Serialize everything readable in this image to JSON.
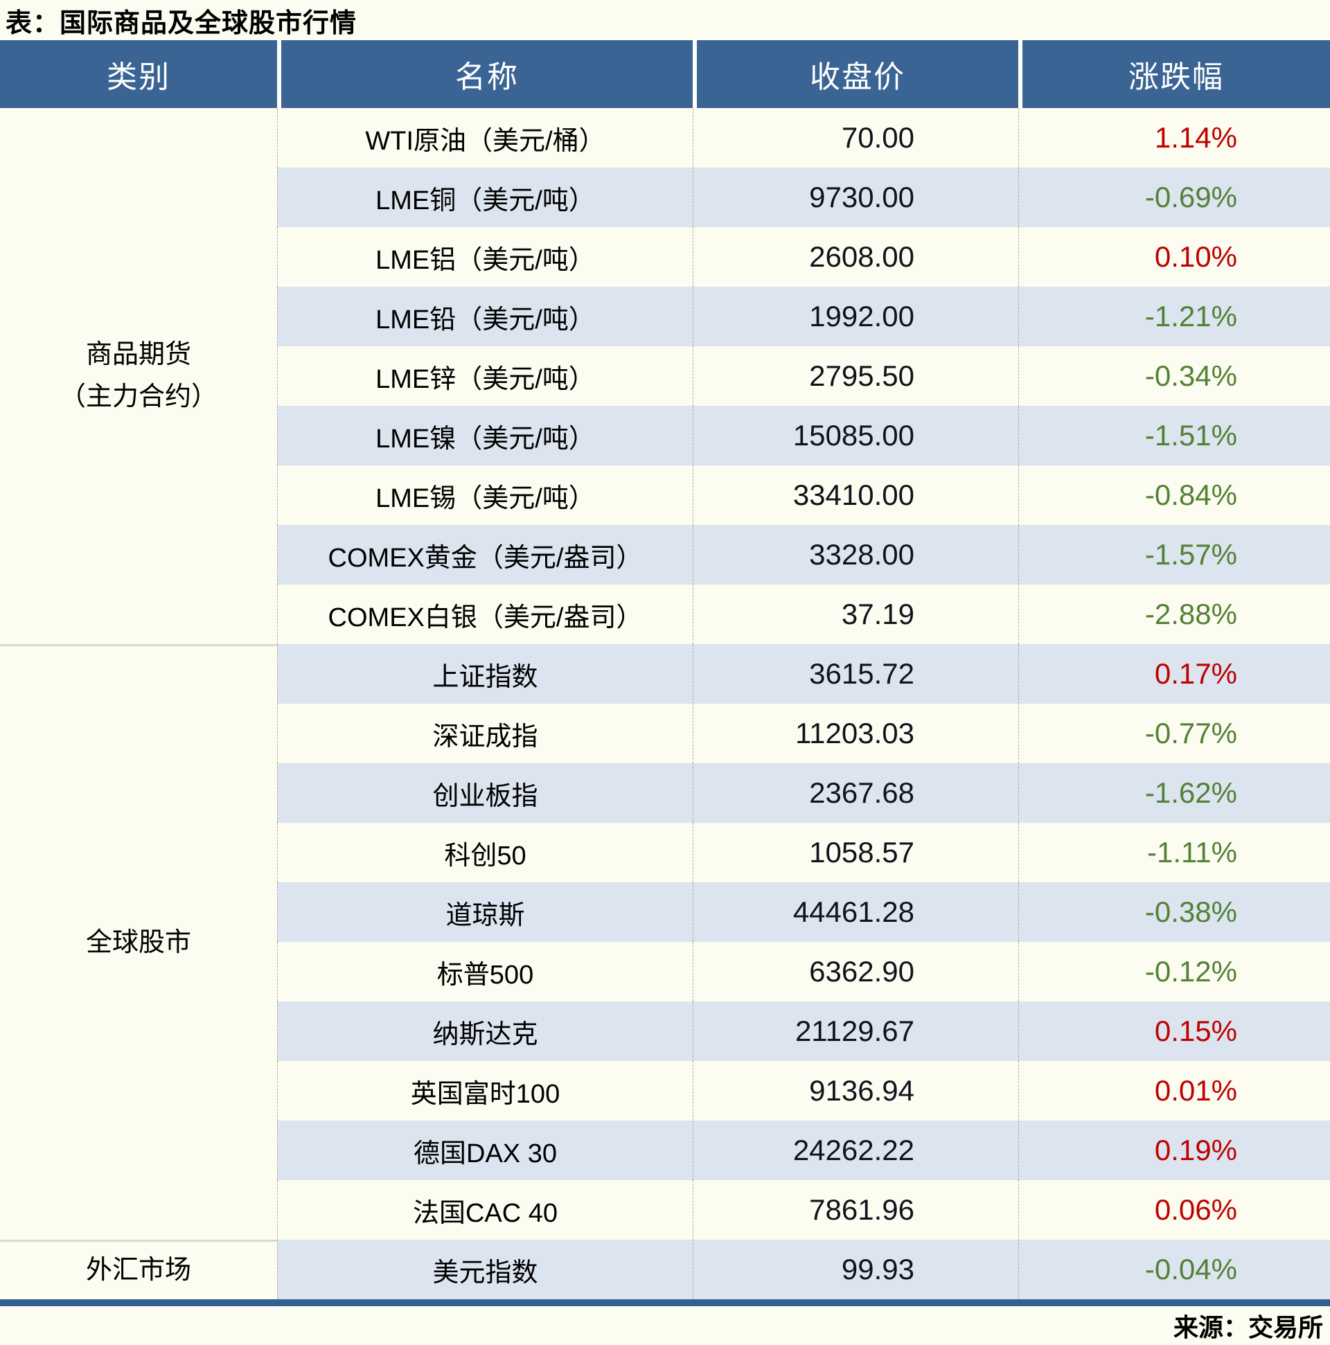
{
  "title": "表：国际商品及全球股市行情",
  "footer": {
    "source": "来源：交易所"
  },
  "colors": {
    "page_bg": "#FCFCF0",
    "header_bg": "#3A6494",
    "stripe_row": "#DBE4EF",
    "up_red": "#C00000",
    "down_green": "#538135",
    "bottom_bar": "#31618E"
  },
  "chart_data": {
    "type": "table",
    "title": "表：国际商品及全球股市行情",
    "source": "来源：交易所",
    "columns": [
      "类别",
      "名称",
      "收盘价",
      "涨跌幅"
    ],
    "groups": [
      {
        "category": "商品期货\n（主力合约）",
        "rows": [
          {
            "name": "WTI原油（美元/桶）",
            "close": "70.00",
            "change": "1.14%",
            "direction": "up"
          },
          {
            "name": "LME铜（美元/吨）",
            "close": "9730.00",
            "change": "-0.69%",
            "direction": "down"
          },
          {
            "name": "LME铝（美元/吨）",
            "close": "2608.00",
            "change": "0.10%",
            "direction": "up"
          },
          {
            "name": "LME铅（美元/吨）",
            "close": "1992.00",
            "change": "-1.21%",
            "direction": "down"
          },
          {
            "name": "LME锌（美元/吨）",
            "close": "2795.50",
            "change": "-0.34%",
            "direction": "down"
          },
          {
            "name": "LME镍（美元/吨）",
            "close": "15085.00",
            "change": "-1.51%",
            "direction": "down"
          },
          {
            "name": "LME锡（美元/吨）",
            "close": "33410.00",
            "change": "-0.84%",
            "direction": "down"
          },
          {
            "name": "COMEX黄金（美元/盎司）",
            "close": "3328.00",
            "change": "-1.57%",
            "direction": "down"
          },
          {
            "name": "COMEX白银（美元/盎司）",
            "close": "37.19",
            "change": "-2.88%",
            "direction": "down"
          }
        ]
      },
      {
        "category": "全球股市",
        "rows": [
          {
            "name": "上证指数",
            "close": "3615.72",
            "change": "0.17%",
            "direction": "up"
          },
          {
            "name": "深证成指",
            "close": "11203.03",
            "change": "-0.77%",
            "direction": "down"
          },
          {
            "name": "创业板指",
            "close": "2367.68",
            "change": "-1.62%",
            "direction": "down"
          },
          {
            "name": "科创50",
            "close": "1058.57",
            "change": "-1.11%",
            "direction": "down"
          },
          {
            "name": "道琼斯",
            "close": "44461.28",
            "change": "-0.38%",
            "direction": "down"
          },
          {
            "name": "标普500",
            "close": "6362.90",
            "change": "-0.12%",
            "direction": "down"
          },
          {
            "name": "纳斯达克",
            "close": "21129.67",
            "change": "0.15%",
            "direction": "up"
          },
          {
            "name": "英国富时100",
            "close": "9136.94",
            "change": "0.01%",
            "direction": "up"
          },
          {
            "name": "德国DAX 30",
            "close": "24262.22",
            "change": "0.19%",
            "direction": "up"
          },
          {
            "name": "法国CAC 40",
            "close": "7861.96",
            "change": "0.06%",
            "direction": "up"
          }
        ]
      },
      {
        "category": "外汇市场",
        "rows": [
          {
            "name": "美元指数",
            "close": "99.93",
            "change": "-0.04%",
            "direction": "down"
          }
        ]
      }
    ]
  }
}
